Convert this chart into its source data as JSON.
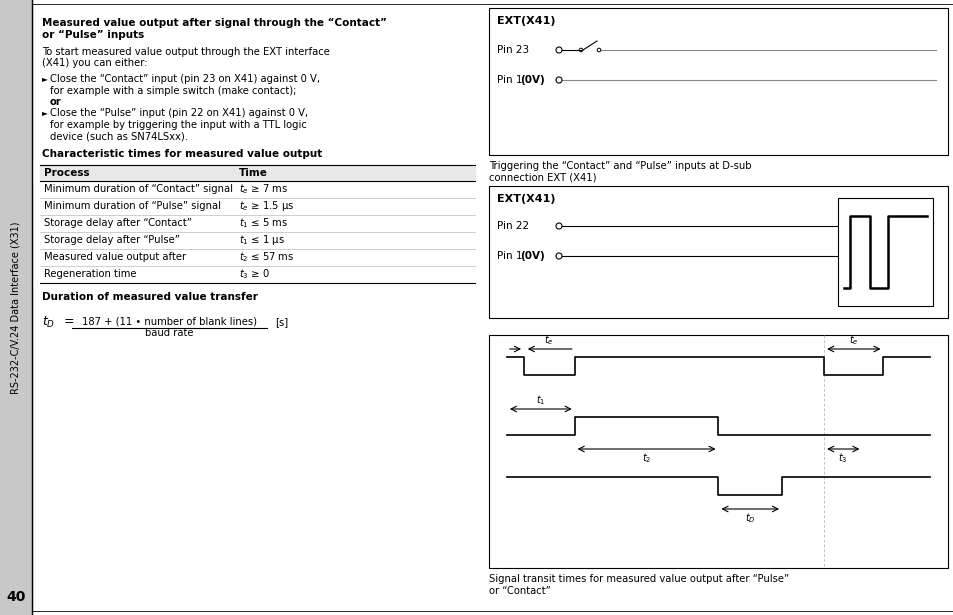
{
  "bg_color": "#ffffff",
  "sidebar_color": "#c8c8c8",
  "sidebar_text": "RS-232-C/V.24 Data Interface (X31)",
  "page_number": "40",
  "left_col": {
    "title1_line1": "Measured value output after signal through the “Contact”",
    "title1_line2": "or “Pulse” inputs",
    "para1_line1": "To start measured value output through the EXT interface",
    "para1_line2": "(X41) you can either:",
    "bullet1_line1": "Close the “Contact” input (pin 23 on X41) against 0 V,",
    "bullet1_line2": "for example with a simple switch (make contact);",
    "bullet1_or": "or",
    "bullet2_line1": "Close the “Pulse” input (pin 22 on X41) against 0 V,",
    "bullet2_line2": "for example by triggering the input with a TTL logic",
    "bullet2_line3": "device (such as SN74LSxx).",
    "title2": "Characteristic times for measured value output",
    "table_headers": [
      "Process",
      "Time"
    ],
    "table_rows": [
      [
        "Minimum duration of “Contact” signal",
        "t_e ≥ 7 ms"
      ],
      [
        "Minimum duration of “Pulse” signal",
        "t_e ≥ 1.5 μs"
      ],
      [
        "Storage delay after “Contact”",
        "t_1 ≤ 5 ms"
      ],
      [
        "Storage delay after “Pulse”",
        "t_1 ≤ 1 μs"
      ],
      [
        "Measured value output after",
        "t_2 ≤ 57 ms"
      ],
      [
        "Regeneration time",
        "t_3 ≥ 0"
      ]
    ],
    "title3": "Duration of measured value transfer",
    "formula_td": "t",
    "formula_td_sub": "D",
    "formula_num": "187 + (11 • number of blank lines)",
    "formula_den": "baud rate",
    "formula_unit": "[s]"
  },
  "right_col": {
    "diag1_title": "EXT(X41)",
    "diag1_pin23": "Pin 23",
    "diag1_pin1_normal": "Pin 1",
    "diag1_pin1_bold": "(0V)",
    "diag2_title": "EXT(X41)",
    "diag2_pin22": "Pin 22",
    "diag2_pin1_normal": "Pin 1",
    "diag2_pin1_bold": "(0V)",
    "caption1_line1": "Triggering the “Contact” and “Pulse” inputs at D-sub",
    "caption1_line2": "connection EXT (X41)",
    "caption2_line1": "Signal transit times for measured value output after “Pulse”",
    "caption2_line2": "or “Contact”"
  }
}
